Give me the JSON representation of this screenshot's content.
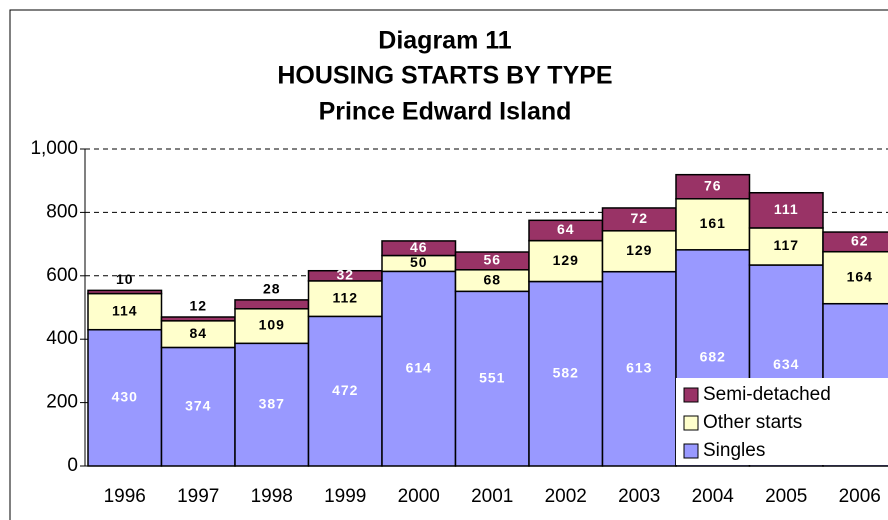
{
  "chart_data": {
    "type": "stacked_bar",
    "title": [
      "Diagram 11",
      "HOUSING STARTS BY TYPE",
      "Prince Edward Island"
    ],
    "categories": [
      "1996",
      "1997",
      "1998",
      "1999",
      "2000",
      "2001",
      "2002",
      "2003",
      "2004",
      "2005",
      "2006"
    ],
    "series": [
      {
        "name": "Singles",
        "color": "#9999ff",
        "values": [
          430,
          374,
          387,
          472,
          614,
          551,
          582,
          613,
          682,
          634,
          512
        ]
      },
      {
        "name": "Other starts",
        "color": "#ffffcc",
        "values": [
          114,
          84,
          109,
          112,
          50,
          68,
          129,
          129,
          161,
          117,
          164
        ]
      },
      {
        "name": "Semi-detached",
        "color": "#993366",
        "values": [
          10,
          12,
          28,
          32,
          46,
          56,
          64,
          72,
          76,
          111,
          62
        ]
      }
    ],
    "ylim": [
      0,
      1000
    ],
    "yticks": [
      0,
      200,
      400,
      600,
      800,
      {
        "value": 1000,
        "label": "1,000"
      }
    ],
    "grid": true,
    "legend": "lower right"
  }
}
